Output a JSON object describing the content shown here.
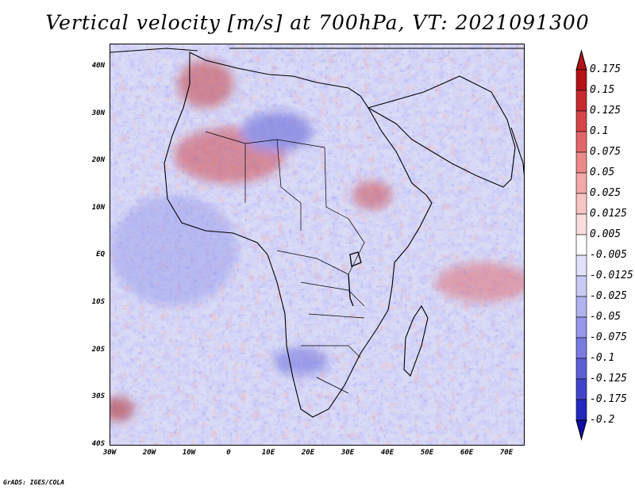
{
  "title": "Vertical velocity [m/s] at 700hPa, VT: 2021091300",
  "credit": "GrADS: IGES/COLA",
  "map": {
    "variable": "Vertical velocity",
    "units": "m/s",
    "level": "700hPa",
    "valid_time": "2021091300",
    "region": "Africa",
    "lat_range": [
      -40,
      45
    ],
    "lon_range": [
      -30,
      75
    ],
    "lat_ticks": [
      "40N",
      "30N",
      "20N",
      "10N",
      "EQ",
      "10S",
      "20S",
      "30S",
      "40S"
    ],
    "lon_ticks": [
      "30W",
      "20W",
      "10W",
      "0",
      "10E",
      "20E",
      "30E",
      "40E",
      "50E",
      "60E",
      "70E"
    ]
  },
  "colorbar": {
    "levels": [
      "0.175",
      "0.15",
      "0.125",
      "0.1",
      "0.075",
      "0.05",
      "0.025",
      "0.0125",
      "0.005",
      "-0.005",
      "-0.0125",
      "-0.025",
      "-0.05",
      "-0.075",
      "-0.1",
      "-0.125",
      "-0.175",
      "-0.2"
    ],
    "colors": [
      "#b31217",
      "#c62a2d",
      "#d6454a",
      "#e26669",
      "#ec8a8b",
      "#f3a9a9",
      "#f8c5c5",
      "#fbdddd",
      "#ffffff",
      "#e1e2f9",
      "#c9cbf4",
      "#b1b3ef",
      "#9597e8",
      "#797be0",
      "#5d5fd6",
      "#4144cb",
      "#2528bd",
      "#0d0fa5"
    ]
  }
}
